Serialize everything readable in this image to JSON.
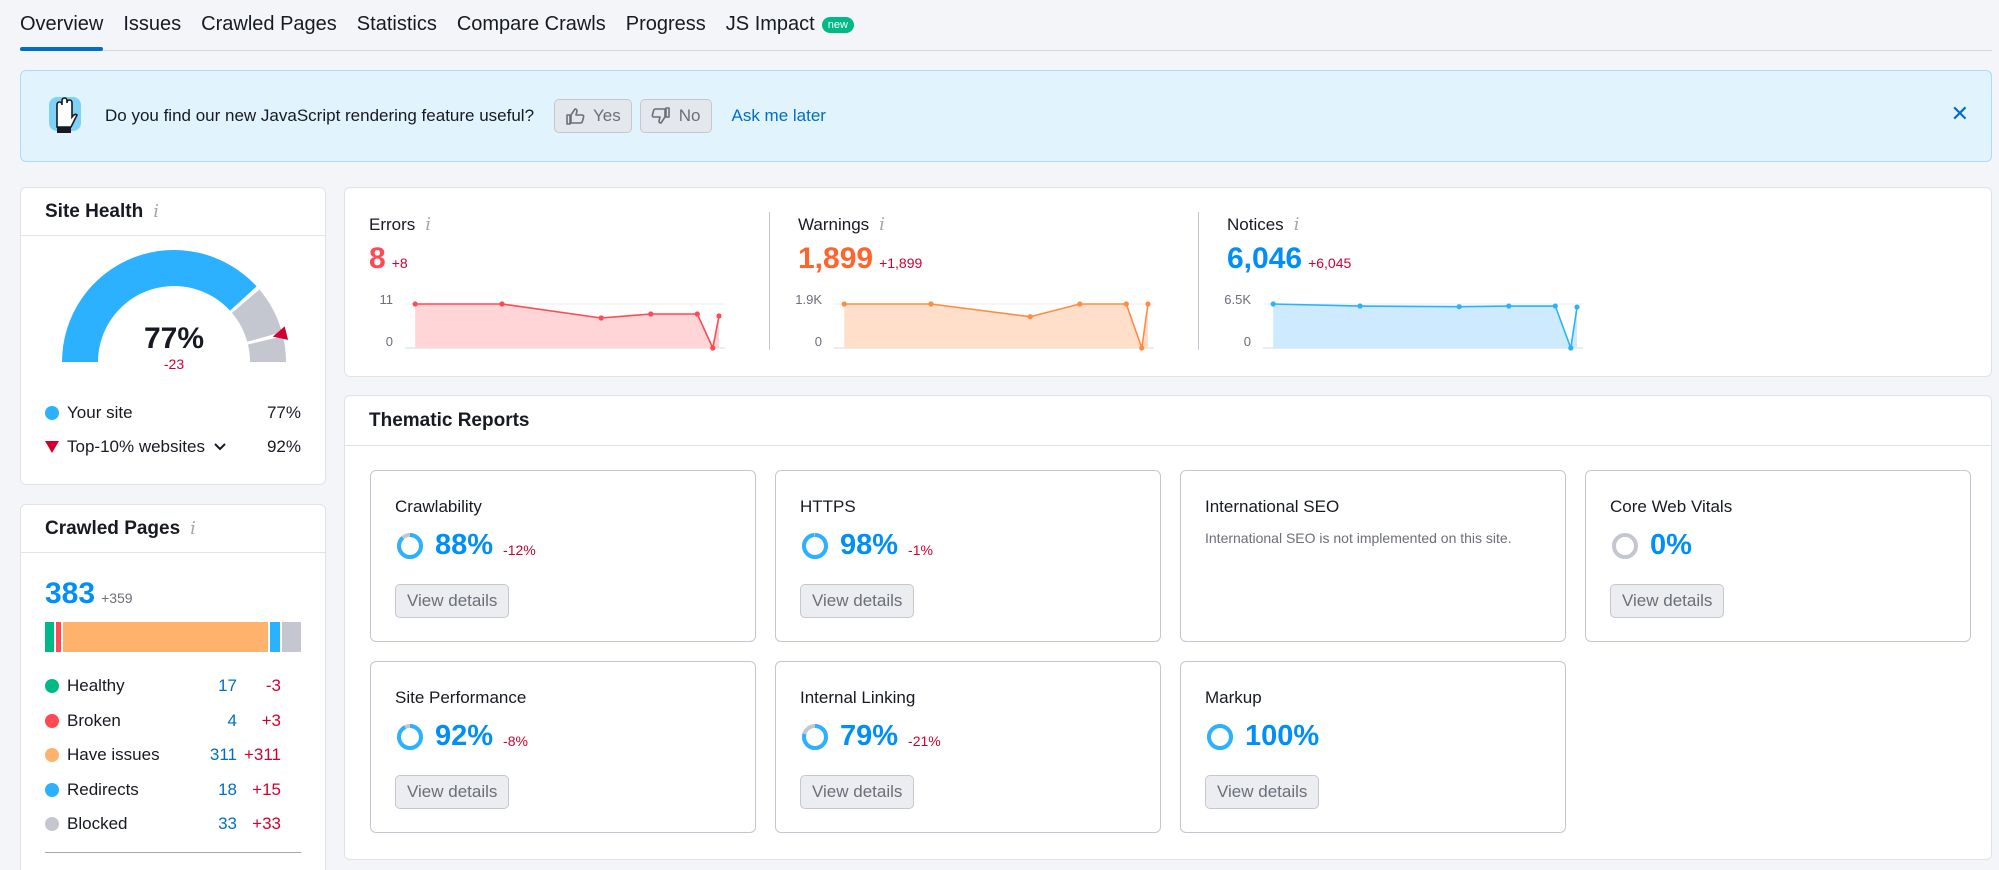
{
  "tabs": [
    {
      "label": "Overview"
    },
    {
      "label": "Issues"
    },
    {
      "label": "Crawled Pages"
    },
    {
      "label": "Statistics"
    },
    {
      "label": "Compare Crawls"
    },
    {
      "label": "Progress"
    },
    {
      "label": "JS Impact",
      "badge": "new"
    }
  ],
  "banner": {
    "question": "Do you find our new JavaScript rendering feature useful?",
    "yes": "Yes",
    "no": "No",
    "ask_later": "Ask me later",
    "close": "✕"
  },
  "site_health": {
    "title": "Site Health",
    "info": "i",
    "score": "77%",
    "delta": "-23",
    "score_fraction": 0.77,
    "top10_fraction": 0.92,
    "your_site_label": "Your site",
    "your_site_value": "77%",
    "top10_label": "Top-10% websites",
    "top10_value": "92%",
    "colors": {
      "your_site": "#2bb1ff",
      "top10": "#d1002f",
      "track": "#c4c7cf"
    }
  },
  "crawled_pages": {
    "title": "Crawled Pages",
    "info": "i",
    "total": "383",
    "total_delta": "+359",
    "rows": [
      {
        "label": "Healthy",
        "value": "17",
        "delta": "-3",
        "color": "#00b987",
        "count": 17
      },
      {
        "label": "Broken",
        "value": "4",
        "delta": "+3",
        "color": "#ff4953",
        "count": 4
      },
      {
        "label": "Have issues",
        "value": "311",
        "delta": "+311",
        "color": "#ffb26b",
        "count": 311
      },
      {
        "label": "Redirects",
        "value": "18",
        "delta": "+15",
        "color": "#2bb1ff",
        "count": 18
      },
      {
        "label": "Blocked",
        "value": "33",
        "delta": "+33",
        "color": "#c4c7cf",
        "count": 33
      }
    ]
  },
  "metrics": {
    "errors": {
      "label": "Errors",
      "info": "i",
      "value": "8",
      "delta": "+8",
      "ymax_label": "11",
      "ymin_label": "0",
      "color": "#ff4953",
      "fill": "#ffd5d7",
      "series": [
        11,
        11,
        7.5,
        8.5,
        8.5,
        0,
        8
      ]
    },
    "warnings": {
      "label": "Warnings",
      "info": "i",
      "value": "1,899",
      "delta": "+1,899",
      "ymax_label": "1.9K",
      "ymin_label": "0",
      "color": "#ff8c43",
      "fill": "#ffdfca",
      "series": [
        1899,
        1899,
        1350,
        1899,
        1899,
        0,
        1899
      ]
    },
    "notices": {
      "label": "Notices",
      "info": "i",
      "value": "6,046",
      "delta": "+6,045",
      "ymax_label": "6.5K",
      "ymin_label": "0",
      "color": "#2bb1ff",
      "fill": "#cdeaff",
      "series": [
        6500,
        6200,
        6100,
        6200,
        6200,
        0,
        6046
      ]
    }
  },
  "thematic": {
    "title": "Thematic Reports",
    "view_details": "View details",
    "reports": [
      {
        "title": "Crawlability",
        "pct": "88%",
        "delta": "-12%",
        "fraction": 0.88
      },
      {
        "title": "HTTPS",
        "pct": "98%",
        "delta": "-1%",
        "fraction": 0.98
      },
      {
        "title": "International SEO",
        "note": "International SEO is not implemented on this site."
      },
      {
        "title": "Core Web Vitals",
        "pct": "0%",
        "delta": "",
        "fraction": 0
      },
      {
        "title": "Site Performance",
        "pct": "92%",
        "delta": "-8%",
        "fraction": 0.92
      },
      {
        "title": "Internal Linking",
        "pct": "79%",
        "delta": "-21%",
        "fraction": 0.79
      },
      {
        "title": "Markup",
        "pct": "100%",
        "delta": "",
        "fraction": 1
      }
    ]
  }
}
